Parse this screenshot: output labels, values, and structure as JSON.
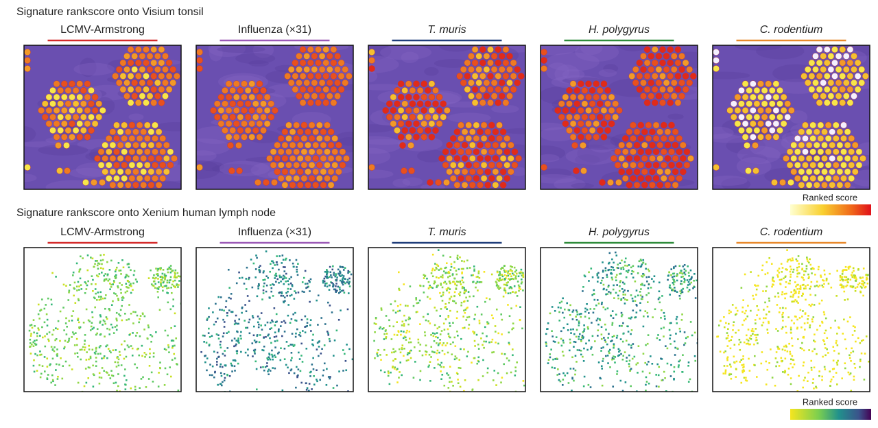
{
  "figure": {
    "sections": [
      {
        "title": "Signature rankscore onto Visium tonsil",
        "panels": [
          {
            "label": "LCMV-Armstrong",
            "italic": false,
            "color": "#d42a2a"
          },
          {
            "label": "Influenza (×31)",
            "italic": false,
            "color": "#9b59b6"
          },
          {
            "label": "T. muris",
            "italic": true,
            "color": "#1f3d7a"
          },
          {
            "label": "H. polygyrus",
            "italic": true,
            "color": "#2e8b3a"
          },
          {
            "label": "C. rodentium",
            "italic": true,
            "color": "#e8892b"
          }
        ],
        "legend": "Ranked score"
      },
      {
        "title": "Signature rankscore onto Xenium human lymph node",
        "panels": [
          {
            "label": "LCMV-Armstrong",
            "italic": false,
            "color": "#d42a2a"
          },
          {
            "label": "Influenza (×31)",
            "italic": false,
            "color": "#9b59b6"
          },
          {
            "label": "T. muris",
            "italic": true,
            "color": "#1f3d7a"
          },
          {
            "label": "H. polygyrus",
            "italic": true,
            "color": "#2e8b3a"
          },
          {
            "label": "C. rodentium",
            "italic": true,
            "color": "#e8892b"
          }
        ],
        "legend": "Ranked score"
      }
    ]
  }
}
